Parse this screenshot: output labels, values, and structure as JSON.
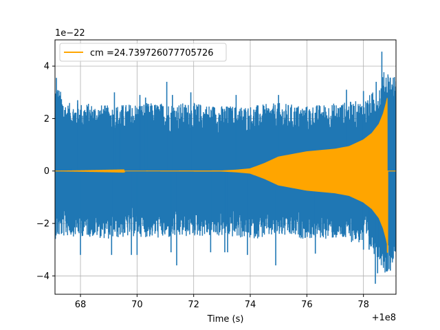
{
  "chart_data": {
    "type": "line",
    "title": "",
    "xlabel": "Time (s)",
    "ylabel": "",
    "x_offset_label": "+1e8",
    "y_scale_label": "1e−22",
    "xlim": [
      67.1,
      79.15
    ],
    "ylim": [
      -4.7,
      5.0
    ],
    "x_ticks": [
      68,
      70,
      72,
      74,
      76,
      78
    ],
    "y_ticks": [
      -4,
      -2,
      0,
      2,
      4
    ],
    "grid": true,
    "legend": {
      "placement": "top-left",
      "entries": [
        "cm =24.739726077705726"
      ]
    },
    "series": [
      {
        "name": "",
        "color": "#1f77b4",
        "kind": "noise-strain",
        "x_range": [
          67.1,
          79.15
        ],
        "upper_envelope": [
          [
            67.1,
            3.5
          ],
          [
            67.5,
            2.6
          ],
          [
            68.2,
            2.6
          ],
          [
            69.0,
            2.5
          ],
          [
            70.0,
            2.6
          ],
          [
            71.0,
            2.6
          ],
          [
            72.0,
            2.6
          ],
          [
            73.0,
            2.5
          ],
          [
            74.0,
            2.5
          ],
          [
            75.0,
            2.6
          ],
          [
            76.0,
            2.5
          ],
          [
            77.0,
            2.6
          ],
          [
            78.0,
            2.7
          ],
          [
            78.5,
            3.2
          ],
          [
            78.8,
            4.0
          ],
          [
            79.15,
            3.6
          ]
        ],
        "lower_envelope": [
          [
            67.1,
            -2.6
          ],
          [
            67.5,
            -2.5
          ],
          [
            68.2,
            -2.5
          ],
          [
            69.0,
            -2.6
          ],
          [
            70.0,
            -2.5
          ],
          [
            71.0,
            -2.6
          ],
          [
            72.0,
            -2.5
          ],
          [
            73.0,
            -2.5
          ],
          [
            74.0,
            -2.6
          ],
          [
            75.0,
            -2.5
          ],
          [
            76.0,
            -2.6
          ],
          [
            77.0,
            -2.6
          ],
          [
            78.0,
            -2.8
          ],
          [
            78.5,
            -3.3
          ],
          [
            78.8,
            -4.0
          ],
          [
            79.15,
            -3.2
          ]
        ],
        "spikes": [
          [
            67.15,
            3.55
          ],
          [
            67.9,
            2.7
          ],
          [
            69.2,
            3.0
          ],
          [
            69.4,
            2.2
          ],
          [
            70.1,
            2.9
          ],
          [
            70.3,
            2.8
          ],
          [
            70.35,
            2.5
          ],
          [
            71.05,
            3.4
          ],
          [
            71.25,
            2.9
          ],
          [
            71.9,
            3.0
          ],
          [
            73.5,
            2.9
          ],
          [
            75.0,
            2.9
          ],
          [
            77.4,
            3.1
          ],
          [
            78.0,
            3.05
          ],
          [
            78.45,
            3.4
          ],
          [
            78.65,
            4.55
          ],
          [
            78.9,
            3.4
          ],
          [
            79.05,
            3.25
          ],
          [
            68.0,
            -3.2
          ],
          [
            69.1,
            -3.2
          ],
          [
            69.8,
            -3.2
          ],
          [
            70.0,
            -3.2
          ],
          [
            71.2,
            -3.1
          ],
          [
            71.4,
            -3.6
          ],
          [
            72.6,
            -3.1
          ],
          [
            73.1,
            -3.1
          ],
          [
            73.2,
            -3.1
          ],
          [
            73.9,
            -3.2
          ],
          [
            74.9,
            -3.6
          ],
          [
            76.3,
            -3.15
          ],
          [
            78.0,
            -3.0
          ],
          [
            78.2,
            -3.0
          ],
          [
            78.42,
            -4.3
          ],
          [
            78.5,
            -3.9
          ],
          [
            78.7,
            -3.6
          ],
          [
            78.95,
            -3.8
          ]
        ]
      },
      {
        "name": "cm =24.739726077705726",
        "color": "#ffa500",
        "kind": "chirp-template",
        "x_range": [
          67.1,
          79.15
        ],
        "merger_time": 78.85,
        "amplitude_envelope": [
          [
            67.1,
            0.0
          ],
          [
            73.0,
            0.02
          ],
          [
            73.5,
            0.05
          ],
          [
            74.0,
            0.1
          ],
          [
            74.5,
            0.3
          ],
          [
            75.0,
            0.55
          ],
          [
            75.5,
            0.65
          ],
          [
            76.0,
            0.75
          ],
          [
            77.0,
            0.85
          ],
          [
            77.5,
            0.95
          ],
          [
            78.0,
            1.2
          ],
          [
            78.3,
            1.45
          ],
          [
            78.55,
            1.8
          ],
          [
            78.7,
            2.2
          ],
          [
            78.8,
            2.6
          ],
          [
            78.85,
            2.85
          ],
          [
            78.86,
            0.0
          ],
          [
            79.15,
            0.0
          ]
        ],
        "min_at_merger": -3.1
      }
    ]
  }
}
